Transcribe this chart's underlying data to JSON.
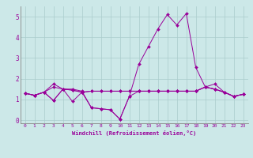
{
  "title": "",
  "xlabel": "Windchill (Refroidissement éolien,°C)",
  "bg_color": "#cce8e8",
  "grid_color": "#aacccc",
  "line_color": "#990099",
  "xlim": [
    -0.5,
    23.5
  ],
  "ylim": [
    -0.15,
    5.5
  ],
  "yticks": [
    0,
    1,
    2,
    3,
    4,
    5
  ],
  "xticks": [
    0,
    1,
    2,
    3,
    4,
    5,
    6,
    7,
    8,
    9,
    10,
    11,
    12,
    13,
    14,
    15,
    16,
    17,
    18,
    19,
    20,
    21,
    22,
    23
  ],
  "series": [
    [
      1.3,
      1.2,
      1.35,
      1.6,
      1.5,
      1.5,
      1.4,
      0.6,
      0.55,
      0.5,
      0.05,
      1.15,
      2.7,
      3.55,
      4.4,
      5.1,
      4.6,
      5.15,
      2.55,
      1.6,
      1.75,
      1.35,
      1.15,
      1.25
    ],
    [
      1.3,
      1.2,
      1.35,
      1.75,
      1.5,
      1.45,
      1.35,
      1.4,
      1.4,
      1.4,
      1.4,
      1.4,
      1.4,
      1.4,
      1.4,
      1.4,
      1.4,
      1.4,
      1.4,
      1.6,
      1.5,
      1.35,
      1.15,
      1.25
    ],
    [
      1.3,
      1.2,
      1.35,
      0.95,
      1.5,
      0.9,
      1.35,
      0.6,
      0.55,
      0.5,
      0.05,
      1.15,
      1.4,
      1.4,
      1.4,
      1.4,
      1.4,
      1.4,
      1.4,
      1.6,
      1.5,
      1.35,
      1.15,
      1.25
    ],
    [
      1.3,
      1.2,
      1.35,
      0.95,
      1.5,
      1.45,
      1.35,
      1.4,
      1.4,
      1.4,
      1.4,
      1.4,
      1.4,
      1.4,
      1.4,
      1.4,
      1.4,
      1.4,
      1.4,
      1.6,
      1.5,
      1.35,
      1.15,
      1.25
    ]
  ],
  "figsize": [
    3.2,
    2.0
  ],
  "dpi": 100
}
